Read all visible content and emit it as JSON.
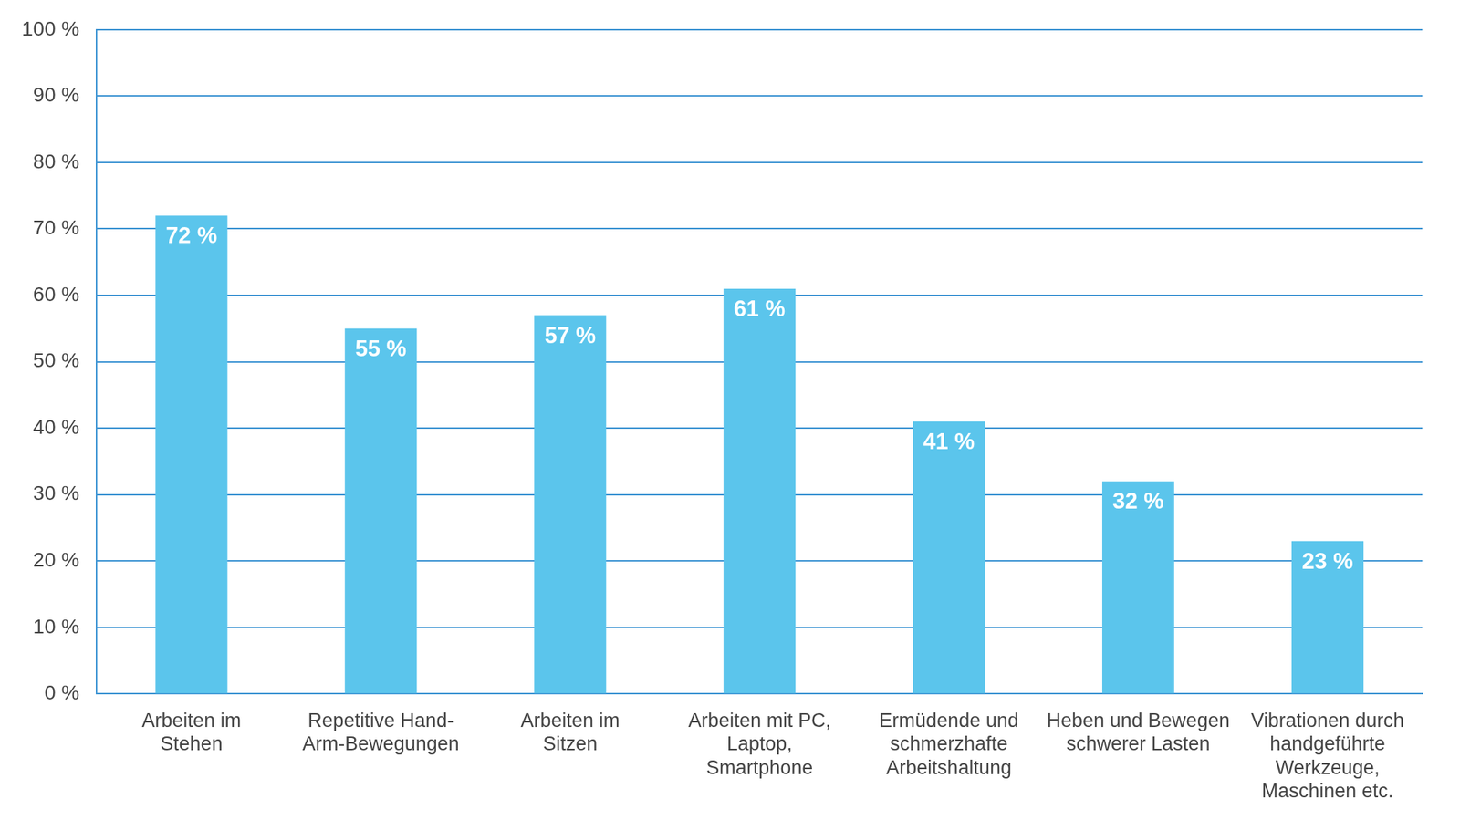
{
  "chart_data": {
    "type": "bar",
    "categories": [
      "Arbeiten im Stehen",
      "Repetitive Hand-Arm-Bewegungen",
      "Arbeiten im Sitzen",
      "Arbeiten mit PC, Laptop, Smartphone",
      "Ermüdende und schmerzhafte Arbeitshaltung",
      "Heben und Bewegen schwerer Lasten",
      "Vibrationen durch handgeführte Werkzeuge, Maschinen etc."
    ],
    "values": [
      72,
      55,
      57,
      61,
      41,
      32,
      23
    ],
    "value_labels": [
      "72 %",
      "55 %",
      "57 %",
      "61 %",
      "41 %",
      "32 %",
      "23 %"
    ],
    "color": "#5bc5ec",
    "ylim": [
      0,
      100
    ],
    "yticks": [
      {
        "value": 0,
        "label": "0 %"
      },
      {
        "value": 10,
        "label": "10 %"
      },
      {
        "value": 20,
        "label": "20 %"
      },
      {
        "value": 30,
        "label": "30 %"
      },
      {
        "value": 40,
        "label": "40 %"
      },
      {
        "value": 50,
        "label": "50 %"
      },
      {
        "value": 60,
        "label": "60 %"
      },
      {
        "value": 70,
        "label": "70 %"
      },
      {
        "value": 80,
        "label": "80 %"
      },
      {
        "value": 90,
        "label": "90 %"
      },
      {
        "value": 100,
        "label": "100 %"
      }
    ],
    "grid": true,
    "data_labels": true
  }
}
